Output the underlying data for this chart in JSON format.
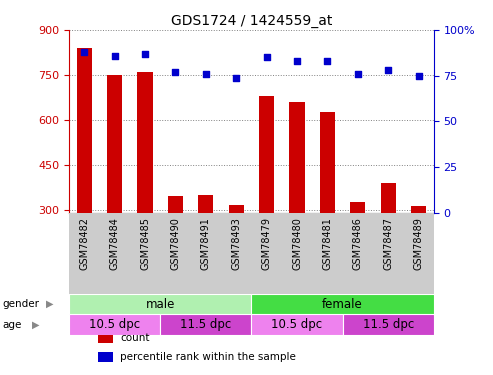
{
  "title": "GDS1724 / 1424559_at",
  "samples": [
    "GSM78482",
    "GSM78484",
    "GSM78485",
    "GSM78490",
    "GSM78491",
    "GSM78493",
    "GSM78479",
    "GSM78480",
    "GSM78481",
    "GSM78486",
    "GSM78487",
    "GSM78489"
  ],
  "bar_values": [
    840,
    750,
    760,
    345,
    350,
    315,
    680,
    660,
    625,
    325,
    390,
    312
  ],
  "pct_values": [
    88,
    86,
    87,
    77,
    76,
    74,
    85,
    83,
    83,
    76,
    78,
    75
  ],
  "bar_color": "#cc0000",
  "pct_color": "#0000cc",
  "ylim_left": [
    290,
    900
  ],
  "ylim_right": [
    0,
    100
  ],
  "yticks_left": [
    300,
    450,
    600,
    750,
    900
  ],
  "yticks_right": [
    0,
    25,
    50,
    75,
    100
  ],
  "grid_ys_left": [
    300,
    450,
    600,
    750,
    900
  ],
  "gender_groups": [
    {
      "label": "male",
      "start": 0,
      "end": 6,
      "color": "#b0f0b0"
    },
    {
      "label": "female",
      "start": 6,
      "end": 12,
      "color": "#44dd44"
    }
  ],
  "age_groups": [
    {
      "label": "10.5 dpc",
      "start": 0,
      "end": 3,
      "color": "#ee82ee"
    },
    {
      "label": "11.5 dpc",
      "start": 3,
      "end": 6,
      "color": "#cc44cc"
    },
    {
      "label": "10.5 dpc",
      "start": 6,
      "end": 9,
      "color": "#ee82ee"
    },
    {
      "label": "11.5 dpc",
      "start": 9,
      "end": 12,
      "color": "#cc44cc"
    }
  ],
  "legend_items": [
    {
      "label": "count",
      "color": "#cc0000"
    },
    {
      "label": "percentile rank within the sample",
      "color": "#0000cc"
    }
  ],
  "gender_label": "gender",
  "age_label": "age",
  "bg_color": "#ffffff",
  "tick_label_color_left": "#cc0000",
  "tick_label_color_right": "#0000cc",
  "bar_bottom": 290,
  "xtick_bg_color": "#cccccc"
}
